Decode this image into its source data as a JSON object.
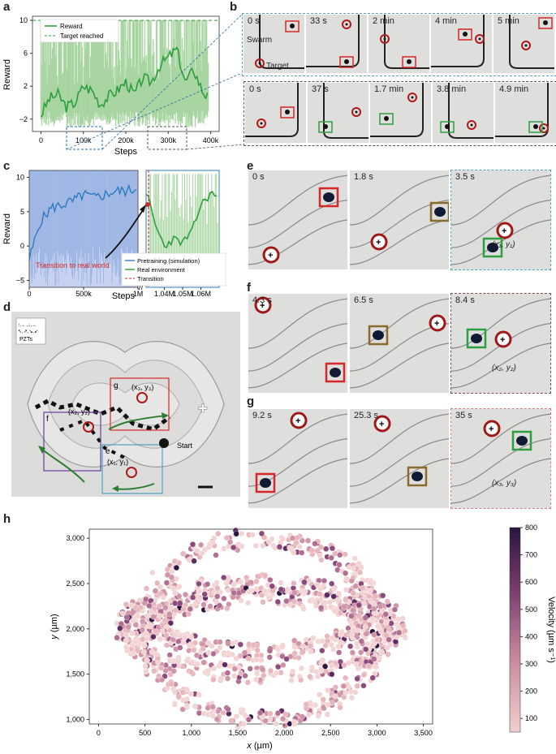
{
  "panel_labels": [
    "a",
    "b",
    "c",
    "d",
    "e",
    "f",
    "g",
    "h"
  ],
  "colors": {
    "green": "#2e9e3e",
    "lightgreen": "#a8d5a2",
    "blue": "#2b7bbf",
    "lightblue": "#c7d2f0",
    "red": "#d62728",
    "teal": "#4aa3c8",
    "brown": "#8b6a2b",
    "purple": "#6a3d9a"
  },
  "panel_b": {
    "row1_times": [
      "0 s",
      "33 s",
      "2 min",
      "4 min",
      "5 min"
    ],
    "row2_times": [
      "0 s",
      "37 s",
      "1.7 min",
      "3.8 min",
      "4.9 min"
    ],
    "swarm_label": "Swarm",
    "target_label": "Target"
  },
  "panel_d": {
    "pzt_line1": "↑,←,↓,→",
    "pzt_line2": "↖,↗,↘,↙",
    "pzt_label": "PZTs",
    "box_g": "g",
    "box_f": "f",
    "box_e": "e",
    "coord1": "(x₁, y₁)",
    "coord2": "(x₂, y₂)",
    "coord3": "(x₃, y₃)",
    "start": "Start"
  },
  "panel_e": {
    "times": [
      "0 s",
      "1.8 s",
      "3.5 s"
    ],
    "coord": "(x₁, y₁)"
  },
  "panel_f": {
    "times": [
      "4.3 s",
      "6.5 s",
      "8.4 s"
    ],
    "coord": "(x₂, y₂)"
  },
  "panel_g": {
    "times": [
      "9.2 s",
      "25.3 s",
      "35 s"
    ],
    "coord": "(x₃, y₃)"
  },
  "chart_data": [
    {
      "id": "a",
      "type": "line",
      "title": "",
      "xlabel": "Steps",
      "ylabel": "Reward",
      "xlim": [
        -20000,
        420000
      ],
      "ylim": [
        -3.5,
        10.5
      ],
      "xticks": [
        "0",
        "100k",
        "200k",
        "300k",
        "400k"
      ],
      "yticks": [
        "−2",
        "2",
        "6",
        "10"
      ],
      "legend": [
        "Reward",
        "Target reached"
      ],
      "target_value": 10,
      "series": [
        {
          "name": "Reward",
          "x": [
            0,
            20000,
            40000,
            60000,
            80000,
            100000,
            120000,
            140000,
            160000,
            180000,
            200000,
            220000,
            240000,
            260000,
            280000,
            300000,
            320000,
            340000,
            360000,
            380000,
            395000
          ],
          "values": [
            -1.5,
            0.5,
            1.0,
            -0.5,
            0.0,
            2.0,
            1.5,
            -0.2,
            0.8,
            1.5,
            2.5,
            1.0,
            3.0,
            2.5,
            4.5,
            5.5,
            6.5,
            2.5,
            4.0,
            1.5,
            0.5
          ]
        }
      ]
    },
    {
      "id": "c",
      "type": "line",
      "xlabel": "Steps",
      "ylabel": "Reward",
      "yticks": [
        "−5",
        "0",
        "5",
        "10"
      ],
      "xticks": [
        "0",
        "500k",
        "1M",
        "1.04M",
        "1.05M",
        "1.06M"
      ],
      "ylim": [
        -6,
        11
      ],
      "annotation": "Transition to real world",
      "legend": [
        "Pretraining (simulation)",
        "Real environment",
        "Transition"
      ],
      "series": [
        {
          "name": "Pretraining (simulation)",
          "x": [
            0,
            100000,
            200000,
            300000,
            400000,
            500000,
            600000,
            700000,
            800000,
            900000,
            1000000
          ],
          "values": [
            -2.0,
            3.5,
            5.5,
            6.0,
            6.5,
            7.5,
            7.0,
            7.5,
            8.0,
            8.0,
            8.5
          ]
        },
        {
          "name": "Real environment",
          "x": [
            1030000,
            1035000,
            1040000,
            1045000,
            1050000,
            1055000,
            1060000,
            1065000,
            1070000
          ],
          "values": [
            8.0,
            3.0,
            0.0,
            1.0,
            0.5,
            2.0,
            6.0,
            7.5,
            7.5
          ]
        }
      ]
    },
    {
      "id": "h",
      "type": "scatter",
      "xlabel": "x (µm)",
      "ylabel": "y (µm)",
      "xlim": [
        -100,
        3600
      ],
      "ylim": [
        950,
        3100
      ],
      "xticks": [
        "0",
        "500",
        "1,000",
        "1,500",
        "2,000",
        "2,500",
        "3,000",
        "3,500"
      ],
      "yticks": [
        "1,000",
        "1,500",
        "2,000",
        "2,500",
        "3,000"
      ],
      "colorbar_label": "Velocity (µm s⁻¹)",
      "colorbar_ticks": [
        "100",
        "200",
        "300",
        "400",
        "500",
        "600",
        "700",
        "800"
      ],
      "colorbar_range": [
        50,
        800
      ]
    }
  ]
}
